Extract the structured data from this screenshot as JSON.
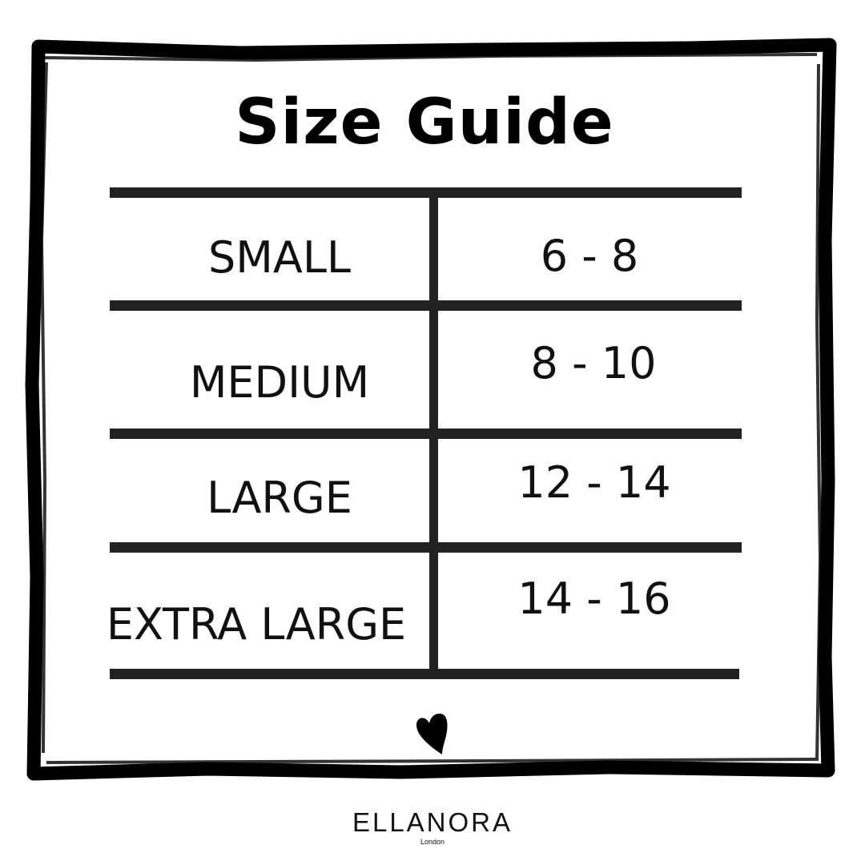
{
  "title": "Size Guide",
  "table": {
    "rows": [
      {
        "size": "SMALL",
        "range": "6 - 8"
      },
      {
        "size": "MEDIUM",
        "range": "8 - 10"
      },
      {
        "size": "LARGE",
        "range": "12 - 14"
      },
      {
        "size": "EXTRA LARGE",
        "range": "14 - 16"
      }
    ]
  },
  "icons": {
    "decoration": "heart-icon"
  },
  "brand": {
    "name": "ELLANORA",
    "location": "London"
  },
  "colors": {
    "ink": "#111111",
    "background": "#ffffff"
  }
}
